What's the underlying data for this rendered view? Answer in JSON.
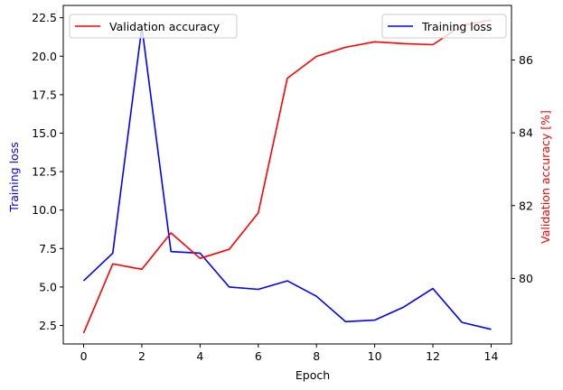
{
  "chart_data": {
    "type": "line",
    "xlabel": "Epoch",
    "x": [
      0,
      1,
      2,
      3,
      4,
      5,
      6,
      7,
      8,
      9,
      10,
      11,
      12,
      13,
      14
    ],
    "xlim": [
      -0.7,
      14.7
    ],
    "xticks": [
      0,
      2,
      4,
      6,
      8,
      10,
      12,
      14
    ],
    "left_axis": {
      "label": "Training loss",
      "color": "#0000ff",
      "ylim": [
        1.3,
        23.3
      ],
      "ticks": [
        "2.5",
        "5.0",
        "7.5",
        "10.0",
        "12.5",
        "15.0",
        "17.5",
        "20.0",
        "22.5"
      ]
    },
    "right_axis": {
      "label": "Validation accuracy [%]",
      "color": "#ff0000",
      "ylim": [
        78.2,
        87.5
      ],
      "ticks": [
        "80",
        "82",
        "84",
        "86"
      ]
    },
    "series": [
      {
        "name": "Training loss",
        "axis": "left",
        "color": "#0000ff",
        "values": [
          5.4,
          7.2,
          21.9,
          7.3,
          7.2,
          5.0,
          4.85,
          5.4,
          4.4,
          2.75,
          2.85,
          3.7,
          4.9,
          2.7,
          2.25
        ]
      },
      {
        "name": "Validation accuracy",
        "axis": "right",
        "color": "#ff0000",
        "values": [
          78.5,
          80.4,
          80.25,
          81.25,
          80.55,
          80.8,
          81.8,
          85.5,
          86.1,
          86.35,
          86.5,
          86.45,
          86.42,
          86.95,
          87.1
        ]
      }
    ],
    "legends": [
      {
        "position": "top-left",
        "entries": [
          "Validation accuracy"
        ]
      },
      {
        "position": "top-right",
        "entries": [
          "Training loss"
        ]
      }
    ],
    "grid": false
  }
}
